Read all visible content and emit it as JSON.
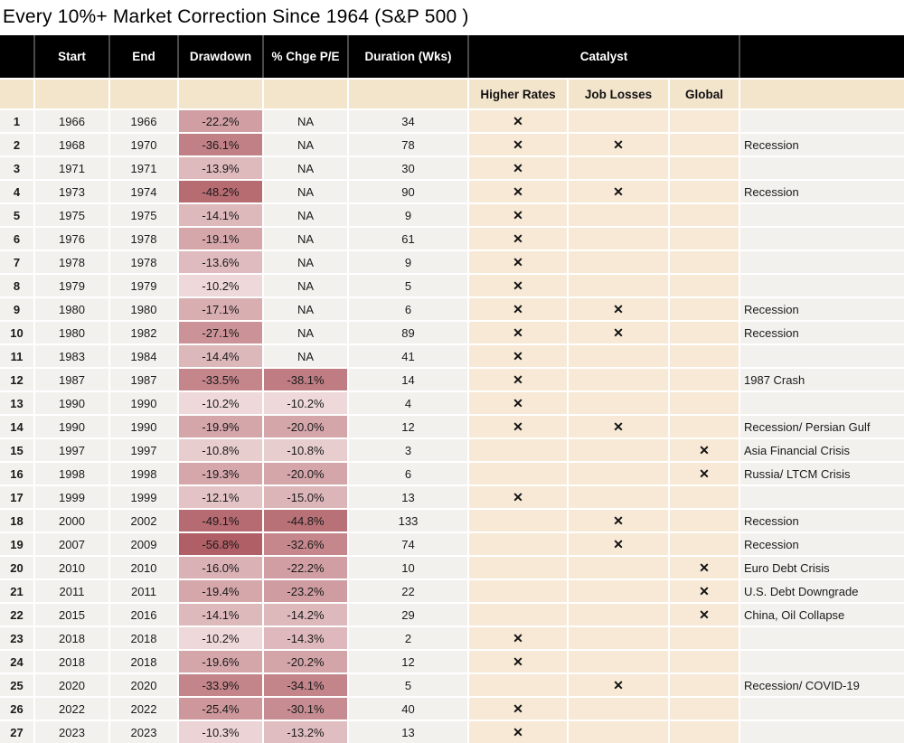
{
  "chart_data": {
    "type": "table",
    "title": "Every 10%+ Market Correction Since 1964 (S&P 500 )",
    "columns": [
      "",
      "Start",
      "End",
      "Drawdown",
      "% Chge P/E",
      "Duration (Wks)"
    ],
    "catalyst_group_label": "Catalyst",
    "catalyst_columns": [
      "Higher Rates",
      "Job Losses",
      "Global"
    ],
    "rows": [
      {
        "n": 1,
        "start": 1966,
        "end": 1966,
        "drawdown": "-22.2%",
        "pe": "NA",
        "duration": 34,
        "higher_rates": true,
        "job_losses": false,
        "global": false,
        "note": ""
      },
      {
        "n": 2,
        "start": 1968,
        "end": 1970,
        "drawdown": "-36.1%",
        "pe": "NA",
        "duration": 78,
        "higher_rates": true,
        "job_losses": true,
        "global": false,
        "note": "Recession"
      },
      {
        "n": 3,
        "start": 1971,
        "end": 1971,
        "drawdown": "-13.9%",
        "pe": "NA",
        "duration": 30,
        "higher_rates": true,
        "job_losses": false,
        "global": false,
        "note": ""
      },
      {
        "n": 4,
        "start": 1973,
        "end": 1974,
        "drawdown": "-48.2%",
        "pe": "NA",
        "duration": 90,
        "higher_rates": true,
        "job_losses": true,
        "global": false,
        "note": "Recession"
      },
      {
        "n": 5,
        "start": 1975,
        "end": 1975,
        "drawdown": "-14.1%",
        "pe": "NA",
        "duration": 9,
        "higher_rates": true,
        "job_losses": false,
        "global": false,
        "note": ""
      },
      {
        "n": 6,
        "start": 1976,
        "end": 1978,
        "drawdown": "-19.1%",
        "pe": "NA",
        "duration": 61,
        "higher_rates": true,
        "job_losses": false,
        "global": false,
        "note": ""
      },
      {
        "n": 7,
        "start": 1978,
        "end": 1978,
        "drawdown": "-13.6%",
        "pe": "NA",
        "duration": 9,
        "higher_rates": true,
        "job_losses": false,
        "global": false,
        "note": ""
      },
      {
        "n": 8,
        "start": 1979,
        "end": 1979,
        "drawdown": "-10.2%",
        "pe": "NA",
        "duration": 5,
        "higher_rates": true,
        "job_losses": false,
        "global": false,
        "note": ""
      },
      {
        "n": 9,
        "start": 1980,
        "end": 1980,
        "drawdown": "-17.1%",
        "pe": "NA",
        "duration": 6,
        "higher_rates": true,
        "job_losses": true,
        "global": false,
        "note": "Recession"
      },
      {
        "n": 10,
        "start": 1980,
        "end": 1982,
        "drawdown": "-27.1%",
        "pe": "NA",
        "duration": 89,
        "higher_rates": true,
        "job_losses": true,
        "global": false,
        "note": "Recession"
      },
      {
        "n": 11,
        "start": 1983,
        "end": 1984,
        "drawdown": "-14.4%",
        "pe": "NA",
        "duration": 41,
        "higher_rates": true,
        "job_losses": false,
        "global": false,
        "note": ""
      },
      {
        "n": 12,
        "start": 1987,
        "end": 1987,
        "drawdown": "-33.5%",
        "pe": "-38.1%",
        "duration": 14,
        "higher_rates": true,
        "job_losses": false,
        "global": false,
        "note": "1987 Crash"
      },
      {
        "n": 13,
        "start": 1990,
        "end": 1990,
        "drawdown": "-10.2%",
        "pe": "-10.2%",
        "duration": 4,
        "higher_rates": true,
        "job_losses": false,
        "global": false,
        "note": ""
      },
      {
        "n": 14,
        "start": 1990,
        "end": 1990,
        "drawdown": "-19.9%",
        "pe": "-20.0%",
        "duration": 12,
        "higher_rates": true,
        "job_losses": true,
        "global": false,
        "note": "Recession/ Persian Gulf"
      },
      {
        "n": 15,
        "start": 1997,
        "end": 1997,
        "drawdown": "-10.8%",
        "pe": "-10.8%",
        "duration": 3,
        "higher_rates": false,
        "job_losses": false,
        "global": true,
        "note": "Asia Financial Crisis"
      },
      {
        "n": 16,
        "start": 1998,
        "end": 1998,
        "drawdown": "-19.3%",
        "pe": "-20.0%",
        "duration": 6,
        "higher_rates": false,
        "job_losses": false,
        "global": true,
        "note": "Russia/ LTCM Crisis"
      },
      {
        "n": 17,
        "start": 1999,
        "end": 1999,
        "drawdown": "-12.1%",
        "pe": "-15.0%",
        "duration": 13,
        "higher_rates": true,
        "job_losses": false,
        "global": false,
        "note": ""
      },
      {
        "n": 18,
        "start": 2000,
        "end": 2002,
        "drawdown": "-49.1%",
        "pe": "-44.8%",
        "duration": 133,
        "higher_rates": false,
        "job_losses": true,
        "global": false,
        "note": "Recession"
      },
      {
        "n": 19,
        "start": 2007,
        "end": 2009,
        "drawdown": "-56.8%",
        "pe": "-32.6%",
        "duration": 74,
        "higher_rates": false,
        "job_losses": true,
        "global": false,
        "note": "Recession"
      },
      {
        "n": 20,
        "start": 2010,
        "end": 2010,
        "drawdown": "-16.0%",
        "pe": "-22.2%",
        "duration": 10,
        "higher_rates": false,
        "job_losses": false,
        "global": true,
        "note": "Euro Debt Crisis"
      },
      {
        "n": 21,
        "start": 2011,
        "end": 2011,
        "drawdown": "-19.4%",
        "pe": "-23.2%",
        "duration": 22,
        "higher_rates": false,
        "job_losses": false,
        "global": true,
        "note": "U.S. Debt Downgrade"
      },
      {
        "n": 22,
        "start": 2015,
        "end": 2016,
        "drawdown": "-14.1%",
        "pe": "-14.2%",
        "duration": 29,
        "higher_rates": false,
        "job_losses": false,
        "global": true,
        "note": "China, Oil Collapse"
      },
      {
        "n": 23,
        "start": 2018,
        "end": 2018,
        "drawdown": "-10.2%",
        "pe": "-14.3%",
        "duration": 2,
        "higher_rates": true,
        "job_losses": false,
        "global": false,
        "note": ""
      },
      {
        "n": 24,
        "start": 2018,
        "end": 2018,
        "drawdown": "-19.6%",
        "pe": "-20.2%",
        "duration": 12,
        "higher_rates": true,
        "job_losses": false,
        "global": false,
        "note": ""
      },
      {
        "n": 25,
        "start": 2020,
        "end": 2020,
        "drawdown": "-33.9%",
        "pe": "-34.1%",
        "duration": 5,
        "higher_rates": false,
        "job_losses": true,
        "global": false,
        "note": "Recession/ COVID-19"
      },
      {
        "n": 26,
        "start": 2022,
        "end": 2022,
        "drawdown": "-25.4%",
        "pe": "-30.1%",
        "duration": 40,
        "higher_rates": true,
        "job_losses": false,
        "global": false,
        "note": ""
      },
      {
        "n": 27,
        "start": 2023,
        "end": 2023,
        "drawdown": "-10.3%",
        "pe": "-13.2%",
        "duration": 13,
        "higher_rates": true,
        "job_losses": false,
        "global": false,
        "note": ""
      }
    ],
    "na_text": "NA",
    "x_mark": "✕",
    "colors": {
      "header_bg": "#000000",
      "header_text": "#ffffff",
      "subheader_bg": "#f3e4cc",
      "catalyst_cell_bg": "#f7e9d6",
      "row_bg": "#f3f1ed",
      "shade_light": "#eed8da",
      "shade_dark": "#b05f66"
    },
    "shade_scale": {
      "domain_min": 10.2,
      "domain_max": 56.8,
      "gamma": 0.55
    }
  }
}
